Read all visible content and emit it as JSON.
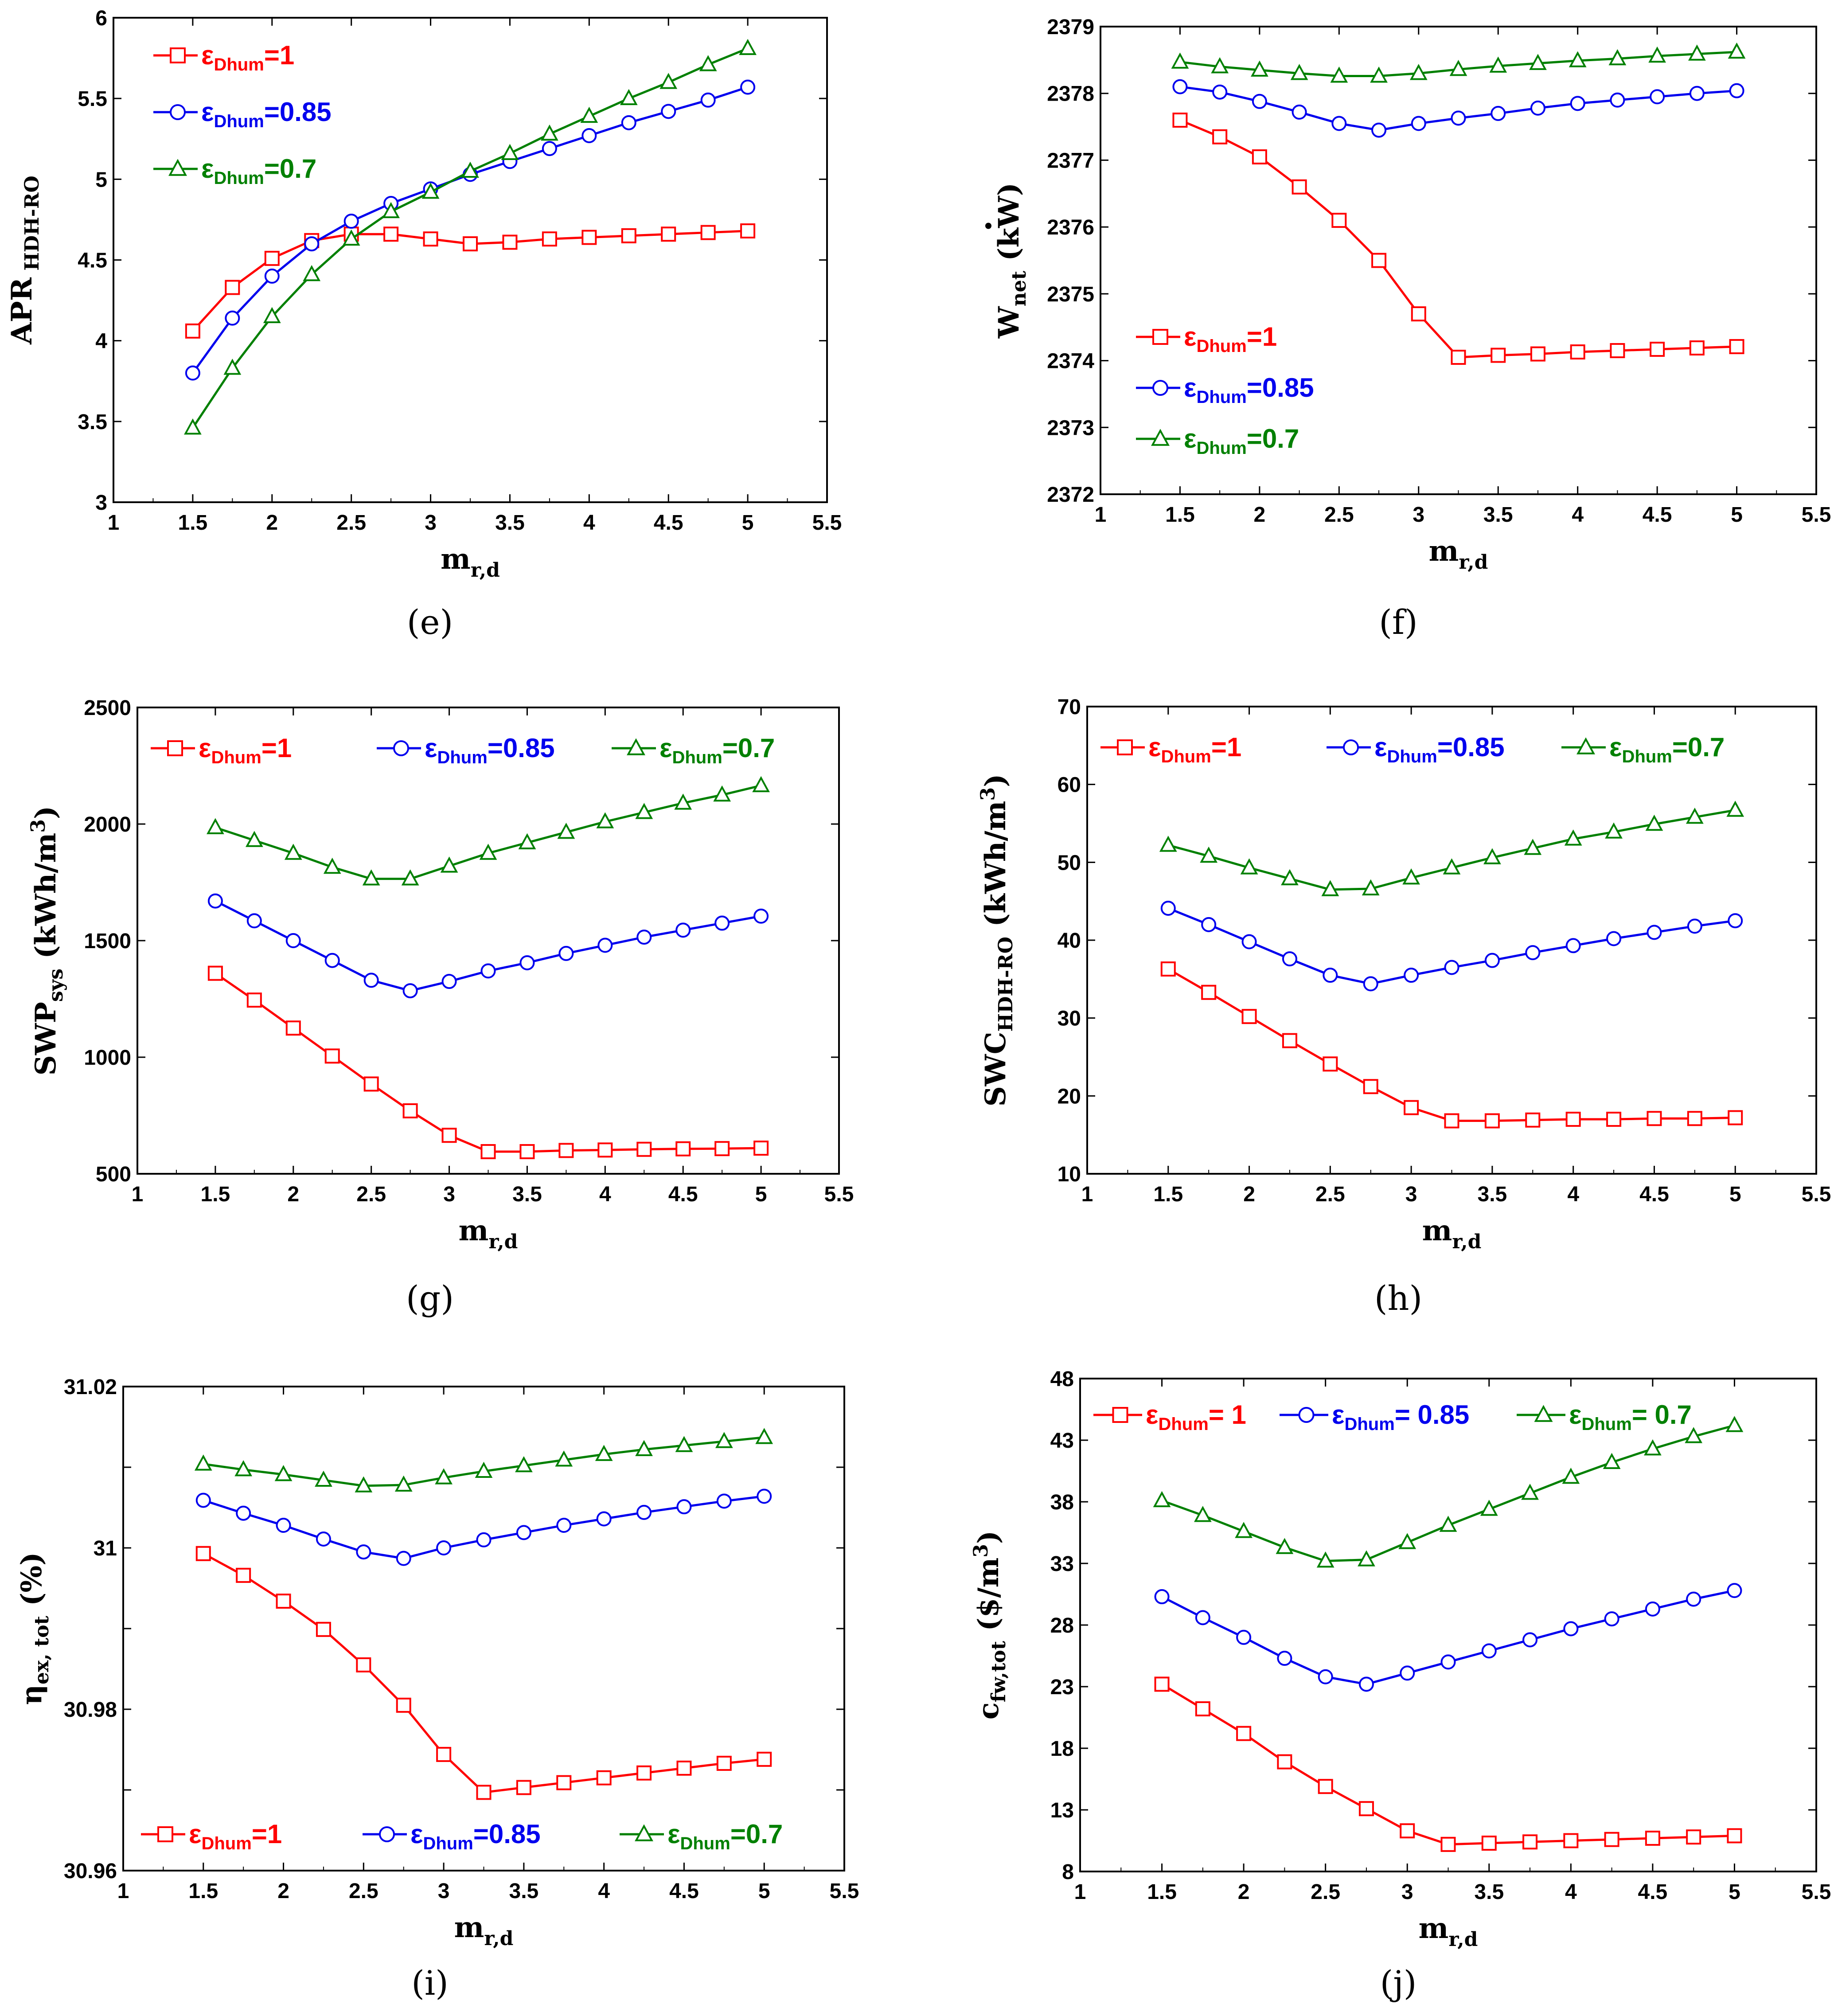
{
  "figure": {
    "panels": [
      "e",
      "f",
      "g",
      "h",
      "i",
      "j"
    ]
  },
  "colors": {
    "red": "#ff0000",
    "blue": "#0000ee",
    "green": "#008000"
  },
  "chart_data": [
    {
      "id": "e",
      "type": "line",
      "panel_label": "(e)",
      "xlabel": "m",
      "xlabel_sub": "r,d",
      "ylabel": "APR",
      "ylabel_sub": " HDH-RO",
      "ylabel_dot": false,
      "xlim": [
        1,
        5.5
      ],
      "ylim": [
        3,
        6
      ],
      "xticks": [
        "1",
        "1.5",
        "2",
        "2.5",
        "3",
        "3.5",
        "4",
        "4.5",
        "5",
        "5.5"
      ],
      "yticks": [
        "3",
        "3.5",
        "4",
        "4.5",
        "5",
        "5.5",
        "6"
      ],
      "legend_layout": "top-left-stack",
      "x": [
        1.5,
        1.75,
        2,
        2.25,
        2.5,
        2.75,
        3,
        3.25,
        3.5,
        3.75,
        4,
        4.25,
        4.5,
        4.75,
        5
      ],
      "series": [
        {
          "name": "ε",
          "name_sub": "Dhum",
          "name_value": "=1",
          "color": "#ff0000",
          "marker": "square",
          "values": [
            4.06,
            4.33,
            4.51,
            4.62,
            4.66,
            4.66,
            4.63,
            4.6,
            4.61,
            4.63,
            4.64,
            4.65,
            4.66,
            4.67,
            4.68
          ]
        },
        {
          "name": "ε",
          "name_sub": "Dhum",
          "name_value": "=0.85",
          "color": "#0000ee",
          "marker": "circle",
          "values": [
            3.8,
            4.14,
            4.4,
            4.6,
            4.74,
            4.85,
            4.94,
            5.03,
            5.11,
            5.19,
            5.27,
            5.35,
            5.42,
            5.49,
            5.57
          ]
        },
        {
          "name": "ε",
          "name_sub": "Dhum",
          "name_value": "=0.7",
          "color": "#008000",
          "marker": "triangle",
          "values": [
            3.46,
            3.83,
            4.15,
            4.41,
            4.63,
            4.8,
            4.92,
            5.05,
            5.16,
            5.28,
            5.39,
            5.5,
            5.6,
            5.71,
            5.81
          ]
        }
      ]
    },
    {
      "id": "f",
      "type": "line",
      "panel_label": "(f)",
      "xlabel": "m",
      "xlabel_sub": "r,d",
      "ylabel": "W",
      "ylabel_sub": "net",
      "ylabel_after": "  (kW)",
      "ylabel_dot": true,
      "xlim": [
        1,
        5.5
      ],
      "ylim": [
        2372,
        2379
      ],
      "xticks": [
        "1",
        "1.5",
        "2",
        "2.5",
        "3",
        "3.5",
        "4",
        "4.5",
        "5",
        "5.5"
      ],
      "yticks": [
        "2372",
        "2373",
        "2374",
        "2375",
        "2376",
        "2377",
        "2378",
        "2379"
      ],
      "legend_layout": "bottom-left-stack",
      "x": [
        1.5,
        1.75,
        2,
        2.25,
        2.5,
        2.75,
        3,
        3.25,
        3.5,
        3.75,
        4,
        4.25,
        4.5,
        4.75,
        5
      ],
      "series": [
        {
          "name": "ε",
          "name_sub": "Dhum",
          "name_value": "=1",
          "color": "#ff0000",
          "marker": "square",
          "values": [
            2377.6,
            2377.35,
            2377.05,
            2376.6,
            2376.1,
            2375.5,
            2374.7,
            2374.05,
            2374.08,
            2374.1,
            2374.13,
            2374.15,
            2374.17,
            2374.19,
            2374.21
          ]
        },
        {
          "name": "ε",
          "name_sub": "Dhum",
          "name_value": "=0.85",
          "color": "#0000ee",
          "marker": "circle",
          "values": [
            2378.1,
            2378.02,
            2377.88,
            2377.72,
            2377.55,
            2377.45,
            2377.55,
            2377.63,
            2377.7,
            2377.78,
            2377.85,
            2377.9,
            2377.95,
            2378.0,
            2378.04
          ]
        },
        {
          "name": "ε",
          "name_sub": "Dhum",
          "name_value": "=0.7",
          "color": "#008000",
          "marker": "triangle",
          "values": [
            2378.47,
            2378.4,
            2378.35,
            2378.3,
            2378.26,
            2378.26,
            2378.3,
            2378.36,
            2378.41,
            2378.45,
            2378.49,
            2378.52,
            2378.56,
            2378.59,
            2378.62
          ]
        }
      ]
    },
    {
      "id": "g",
      "type": "line",
      "panel_label": "(g)",
      "xlabel": "m",
      "xlabel_sub": "r,d",
      "ylabel": "SWP",
      "ylabel_sub": "sys",
      "ylabel_after": " (kWh/m",
      "ylabel_sup": "3",
      "ylabel_end": ")",
      "ylabel_dot": false,
      "xlim": [
        1,
        5.5
      ],
      "ylim": [
        500,
        2500
      ],
      "xticks": [
        "1",
        "1.5",
        "2",
        "2.5",
        "3",
        "3.5",
        "4",
        "4.5",
        "5",
        "5.5"
      ],
      "yticks": [
        "500",
        "1000",
        "1500",
        "2000",
        "2500"
      ],
      "legend_layout": "top-row",
      "x": [
        1.5,
        1.75,
        2,
        2.25,
        2.5,
        2.75,
        3,
        3.25,
        3.5,
        3.75,
        4,
        4.25,
        4.5,
        4.75,
        5
      ],
      "series": [
        {
          "name": "ε",
          "name_sub": "Dhum",
          "name_value": "=1",
          "color": "#ff0000",
          "marker": "square",
          "values": [
            1360,
            1245,
            1125,
            1005,
            885,
            770,
            665,
            595,
            595,
            600,
            602,
            605,
            607,
            608,
            610
          ]
        },
        {
          "name": "ε",
          "name_sub": "Dhum",
          "name_value": "=0.85",
          "color": "#0000ee",
          "marker": "circle",
          "values": [
            1670,
            1585,
            1500,
            1415,
            1330,
            1285,
            1325,
            1370,
            1405,
            1445,
            1480,
            1515,
            1545,
            1575,
            1605
          ]
        },
        {
          "name": "ε",
          "name_sub": "Dhum",
          "name_value": "=0.7",
          "color": "#008000",
          "marker": "triangle",
          "values": [
            1985,
            1930,
            1875,
            1815,
            1765,
            1765,
            1820,
            1875,
            1920,
            1965,
            2010,
            2050,
            2090,
            2125,
            2165
          ]
        }
      ]
    },
    {
      "id": "h",
      "type": "line",
      "panel_label": "(h)",
      "xlabel": "m",
      "xlabel_sub": "r,d",
      "ylabel": "SWC",
      "ylabel_sub": "HDH-RO",
      "ylabel_after": " (kWh/m",
      "ylabel_sup": "3",
      "ylabel_end": ")",
      "ylabel_dot": false,
      "xlim": [
        1,
        5.5
      ],
      "ylim": [
        10,
        70
      ],
      "xticks": [
        "1",
        "1.5",
        "2",
        "2.5",
        "3",
        "3.5",
        "4",
        "4.5",
        "5",
        "5.5"
      ],
      "yticks": [
        "10",
        "20",
        "30",
        "40",
        "50",
        "60",
        "70"
      ],
      "legend_layout": "top-row",
      "x": [
        1.5,
        1.75,
        2,
        2.25,
        2.5,
        2.75,
        3,
        3.25,
        3.5,
        3.75,
        4,
        4.25,
        4.5,
        4.75,
        5
      ],
      "series": [
        {
          "name": "ε",
          "name_sub": "Dhum",
          "name_value": "=1",
          "color": "#ff0000",
          "marker": "square",
          "values": [
            36.3,
            33.3,
            30.2,
            27.1,
            24.1,
            21.2,
            18.5,
            16.8,
            16.8,
            16.9,
            17.0,
            17.0,
            17.1,
            17.1,
            17.2
          ]
        },
        {
          "name": "ε",
          "name_sub": "Dhum",
          "name_value": "=0.85",
          "color": "#0000ee",
          "marker": "circle",
          "values": [
            44.1,
            42.0,
            39.8,
            37.6,
            35.5,
            34.4,
            35.5,
            36.5,
            37.4,
            38.4,
            39.3,
            40.2,
            41.0,
            41.8,
            42.5
          ]
        },
        {
          "name": "ε",
          "name_sub": "Dhum",
          "name_value": "=0.7",
          "color": "#008000",
          "marker": "triangle",
          "values": [
            52.2,
            50.8,
            49.3,
            47.9,
            46.5,
            46.6,
            48.0,
            49.3,
            50.6,
            51.8,
            53.0,
            53.9,
            54.9,
            55.8,
            56.7
          ]
        }
      ]
    },
    {
      "id": "i",
      "type": "line",
      "panel_label": "(i)",
      "xlabel": "m",
      "xlabel_sub": "r,d",
      "ylabel": "η",
      "ylabel_sub": "ex, tot",
      "ylabel_after": " (%)",
      "ylabel_dot": false,
      "xlim": [
        1,
        5.5
      ],
      "ylim": [
        30.96,
        31.02
      ],
      "xticks": [
        "1",
        "1.5",
        "2",
        "2.5",
        "3",
        "3.5",
        "4",
        "4.5",
        "5",
        "5.5"
      ],
      "yticks": [
        "30.96",
        "",
        "30.98",
        "",
        "31",
        "",
        "31.02"
      ],
      "legend_layout": "bottom-row",
      "x": [
        1.5,
        1.75,
        2,
        2.25,
        2.5,
        2.75,
        3,
        3.25,
        3.5,
        3.75,
        4,
        4.25,
        4.5,
        4.75,
        5
      ],
      "series": [
        {
          "name": "ε",
          "name_sub": "Dhum",
          "name_value": "=1",
          "color": "#ff0000",
          "marker": "square",
          "values": [
            30.9993,
            30.9966,
            30.9934,
            30.9899,
            30.9855,
            30.9805,
            30.9744,
            30.9697,
            30.9703,
            30.9709,
            30.9715,
            30.9721,
            30.9727,
            30.9733,
            30.9738
          ]
        },
        {
          "name": "ε",
          "name_sub": "Dhum",
          "name_value": "=0.85",
          "color": "#0000ee",
          "marker": "circle",
          "values": [
            31.0059,
            31.0043,
            31.0028,
            31.0011,
            30.9995,
            30.9987,
            31.0,
            31.001,
            31.0019,
            31.0028,
            31.0036,
            31.0044,
            31.0051,
            31.0058,
            31.0064
          ]
        },
        {
          "name": "ε",
          "name_sub": "Dhum",
          "name_value": "=0.7",
          "color": "#008000",
          "marker": "triangle",
          "values": [
            31.0104,
            31.0097,
            31.0091,
            31.0084,
            31.0077,
            31.0078,
            31.0087,
            31.0095,
            31.0102,
            31.0109,
            31.0116,
            31.0122,
            31.0127,
            31.0132,
            31.0137
          ]
        }
      ]
    },
    {
      "id": "j",
      "type": "line",
      "panel_label": "(j)",
      "xlabel": "m",
      "xlabel_sub": "r,d",
      "ylabel": "c",
      "ylabel_sub": "fw,tot",
      "ylabel_after": " ($/m",
      "ylabel_sup": "3",
      "ylabel_end": ")",
      "ylabel_dot": false,
      "xlim": [
        1,
        5.5
      ],
      "ylim": [
        8,
        48
      ],
      "xticks": [
        "1",
        "1.5",
        "2",
        "2.5",
        "3",
        "3.5",
        "4",
        "4.5",
        "5",
        "5.5"
      ],
      "yticks": [
        "8",
        "13",
        "18",
        "23",
        "28",
        "33",
        "38",
        "43",
        "48"
      ],
      "legend_layout": "top-row-compact",
      "x": [
        1.5,
        1.75,
        2,
        2.25,
        2.5,
        2.75,
        3,
        3.25,
        3.5,
        3.75,
        4,
        4.25,
        4.5,
        4.75,
        5
      ],
      "series": [
        {
          "name": "ε",
          "name_sub": "Dhum",
          "name_value": "= 1",
          "color": "#ff0000",
          "marker": "square",
          "values": [
            23.2,
            21.2,
            19.2,
            16.9,
            14.9,
            13.1,
            11.3,
            10.2,
            10.3,
            10.4,
            10.5,
            10.6,
            10.7,
            10.8,
            10.9
          ]
        },
        {
          "name": "ε",
          "name_sub": "Dhum",
          "name_value": "= 0.85",
          "color": "#0000ee",
          "marker": "circle",
          "values": [
            30.3,
            28.6,
            27.0,
            25.3,
            23.8,
            23.2,
            24.1,
            25.0,
            25.9,
            26.8,
            27.7,
            28.5,
            29.3,
            30.1,
            30.8
          ]
        },
        {
          "name": "ε",
          "name_sub": "Dhum",
          "name_value": "= 0.7",
          "color": "#008000",
          "marker": "triangle",
          "values": [
            38.1,
            36.9,
            35.6,
            34.3,
            33.2,
            33.3,
            34.7,
            36.1,
            37.4,
            38.7,
            40.0,
            41.2,
            42.3,
            43.3,
            44.2
          ]
        }
      ]
    }
  ]
}
